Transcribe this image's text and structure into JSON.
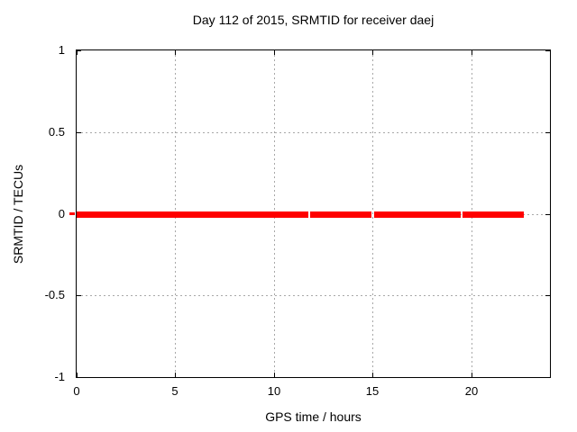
{
  "figure": {
    "background": "#ffffff"
  },
  "chart_data": {
    "type": "line",
    "title": "Day 112 of 2015, SRMTID for receiver daej",
    "xlabel": "GPS time / hours",
    "ylabel": "SRMTID / TECUs",
    "xlim": [
      0,
      24
    ],
    "ylim": [
      -1,
      1
    ],
    "xticks": [
      0,
      5,
      10,
      15,
      20
    ],
    "xtick_labels": [
      "0",
      "5",
      "10",
      "15",
      "20"
    ],
    "yticks": [
      -1,
      -0.5,
      0,
      0.5,
      1
    ],
    "ytick_labels": [
      "-1",
      "-0.5",
      "0",
      "0.5",
      "1"
    ],
    "grid": true,
    "grid_style": "dotted",
    "legend_position": "none",
    "series": [
      {
        "name": "SRMTID",
        "color": "#ff0000",
        "y_value": 0,
        "segments_x_hours": [
          [
            0,
            11.75
          ],
          [
            11.85,
            14.97
          ],
          [
            15.07,
            19.44
          ],
          [
            19.55,
            22.67
          ]
        ]
      }
    ],
    "colors": {
      "line": "#ff0000",
      "grid": "#a8a8a8",
      "border": "#000000",
      "text": "#000000"
    }
  }
}
